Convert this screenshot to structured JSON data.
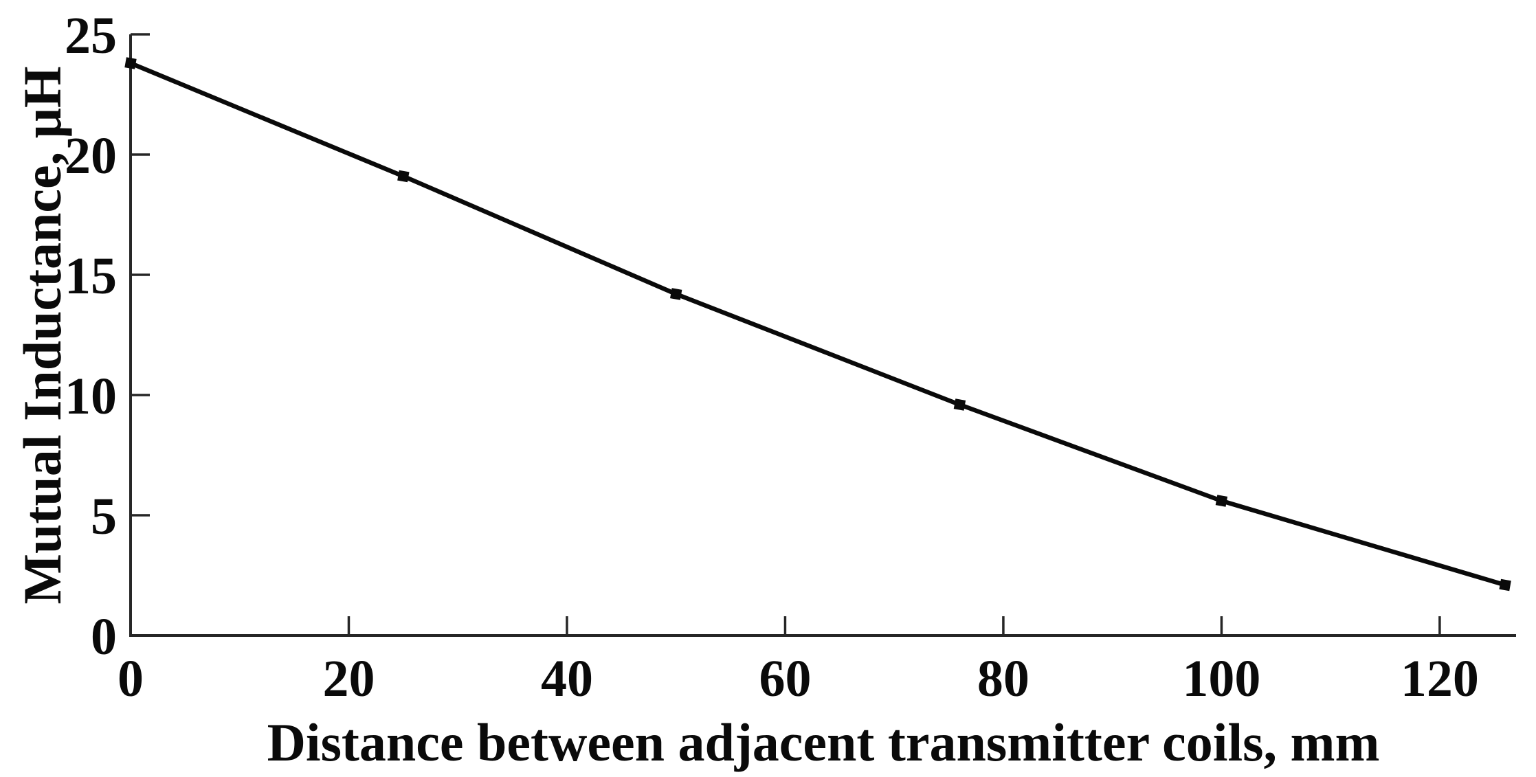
{
  "figure": {
    "background": "#ffffff",
    "text_color": "#0a0a0a"
  },
  "chart_data": {
    "type": "line",
    "title": "",
    "xlabel": "Distance between adjacent transmitter coils, mm",
    "ylabel": "Mutual Inductance, μH",
    "series": [
      {
        "name": "mutual-inductance",
        "x": [
          0,
          25,
          50,
          76,
          100,
          126
        ],
        "y": [
          23.8,
          19.1,
          14.2,
          9.6,
          5.6,
          2.1
        ]
      }
    ],
    "xlim": [
      0,
      127
    ],
    "ylim": [
      0,
      25
    ],
    "xticks": [
      0,
      20,
      40,
      60,
      80,
      100,
      120
    ],
    "yticks": [
      0,
      5,
      10,
      15,
      20,
      25
    ],
    "grid": false,
    "legend": false,
    "line_color": "#0a0a0a",
    "axis_color": "#262626",
    "marker": "square",
    "marker_size": 15,
    "line_width": 6.5
  }
}
